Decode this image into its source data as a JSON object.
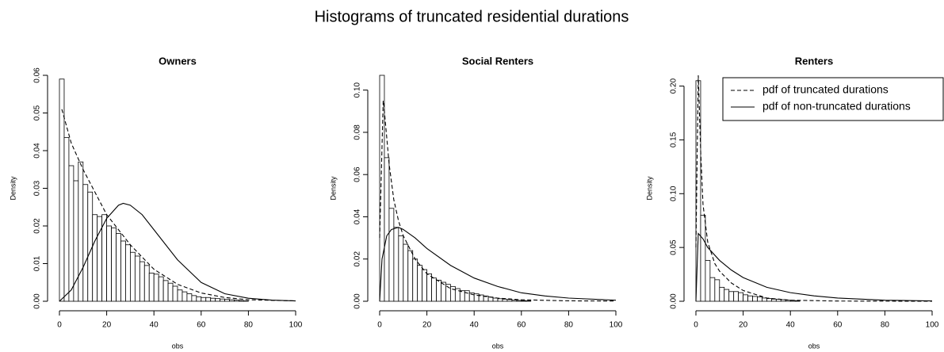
{
  "title": "Histograms of truncated residential durations",
  "chart_data": [
    {
      "type": "histogram",
      "title": "Owners",
      "xlabel": "obs",
      "ylabel": "Density",
      "bins": [
        0,
        2,
        4,
        6,
        8,
        10,
        12,
        14,
        16,
        18,
        20,
        22,
        24,
        26,
        28,
        30,
        32,
        34,
        36,
        38,
        40,
        42,
        44,
        46,
        48,
        50,
        52,
        54,
        56,
        58,
        60,
        62,
        64,
        66,
        68,
        70,
        72,
        74,
        76,
        78,
        80
      ],
      "values": [
        0.059,
        0.0435,
        0.036,
        0.032,
        0.037,
        0.031,
        0.029,
        0.023,
        0.0225,
        0.023,
        0.02,
        0.0195,
        0.018,
        0.016,
        0.015,
        0.013,
        0.012,
        0.0105,
        0.0095,
        0.0075,
        0.0072,
        0.0065,
        0.0055,
        0.0048,
        0.004,
        0.003,
        0.0025,
        0.002,
        0.0015,
        0.0012,
        0.001,
        0.001,
        0.0008,
        0.0007,
        0.0006,
        0.0005,
        0.0004,
        0.0003,
        0.0002,
        0.0001
      ],
      "series": [
        {
          "dashed": true,
          "color": "#000000",
          "x": [
            1,
            5,
            10,
            20,
            30,
            40,
            50,
            60,
            70,
            80,
            100
          ],
          "values": [
            0.051,
            0.042,
            0.035,
            0.023,
            0.015,
            0.0085,
            0.0045,
            0.0022,
            0.001,
            0.0004,
            0.0001
          ]
        },
        {
          "dashed": false,
          "color": "#000000",
          "x": [
            0,
            5,
            10,
            15,
            20,
            25,
            27,
            30,
            35,
            40,
            50,
            60,
            70,
            80,
            90,
            100
          ],
          "values": [
            0,
            0.003,
            0.009,
            0.016,
            0.022,
            0.0255,
            0.026,
            0.0255,
            0.023,
            0.019,
            0.011,
            0.005,
            0.002,
            0.0008,
            0.0003,
            0.0001
          ]
        }
      ],
      "xlim": [
        0,
        100
      ],
      "xticks": [
        0,
        20,
        40,
        60,
        80,
        100
      ],
      "ylim": [
        0,
        0.06
      ],
      "yticks": [
        {
          "value": 0,
          "label": "0.00"
        },
        {
          "value": 0.01,
          "label": "0.01"
        },
        {
          "value": 0.02,
          "label": "0.02"
        },
        {
          "value": 0.03,
          "label": "0.03"
        },
        {
          "value": 0.04,
          "label": "0.04"
        },
        {
          "value": 0.05,
          "label": "0.05"
        },
        {
          "value": 0.06,
          "label": "0.06"
        }
      ]
    },
    {
      "type": "histogram",
      "title": "Social Renters",
      "xlabel": "obs",
      "ylabel": "Density",
      "bins": [
        0,
        2,
        4,
        6,
        8,
        10,
        12,
        14,
        16,
        18,
        20,
        22,
        24,
        26,
        28,
        30,
        32,
        34,
        36,
        38,
        40,
        42,
        44,
        46,
        48,
        50,
        52,
        54,
        56,
        58,
        60,
        62,
        64
      ],
      "values": [
        0.107,
        0.068,
        0.044,
        0.035,
        0.031,
        0.027,
        0.024,
        0.02,
        0.017,
        0.015,
        0.013,
        0.011,
        0.01,
        0.009,
        0.008,
        0.007,
        0.006,
        0.005,
        0.005,
        0.004,
        0.0035,
        0.003,
        0.0025,
        0.002,
        0.0015,
        0.0012,
        0.001,
        0.0008,
        0.0006,
        0.0004,
        0.0003,
        0.0002
      ],
      "series": [
        {
          "dashed": true,
          "color": "#000000",
          "x": [
            0,
            1.5,
            2,
            4,
            6,
            8,
            10,
            15,
            20,
            30,
            40,
            50,
            60,
            80,
            100
          ],
          "values": [
            0.03,
            0.095,
            0.09,
            0.065,
            0.048,
            0.038,
            0.031,
            0.02,
            0.013,
            0.006,
            0.003,
            0.0015,
            0.0007,
            0.0002,
            0.0001
          ]
        },
        {
          "dashed": false,
          "color": "#000000",
          "x": [
            0,
            1,
            3,
            5,
            8,
            10,
            15,
            20,
            30,
            40,
            50,
            60,
            70,
            80,
            100
          ],
          "values": [
            0,
            0.02,
            0.031,
            0.034,
            0.035,
            0.034,
            0.03,
            0.025,
            0.017,
            0.011,
            0.007,
            0.004,
            0.0025,
            0.0015,
            0.0005
          ]
        }
      ],
      "xlim": [
        0,
        100
      ],
      "xticks": [
        0,
        20,
        40,
        60,
        80,
        100
      ],
      "ylim": [
        0,
        0.107
      ],
      "yticks": [
        {
          "value": 0,
          "label": "0.00"
        },
        {
          "value": 0.02,
          "label": "0.02"
        },
        {
          "value": 0.04,
          "label": "0.04"
        },
        {
          "value": 0.06,
          "label": "0.06"
        },
        {
          "value": 0.08,
          "label": "0.08"
        },
        {
          "value": 0.1,
          "label": "0.10"
        }
      ]
    },
    {
      "type": "histogram",
      "title": "Renters",
      "xlabel": "obs",
      "ylabel": "Density",
      "bins": [
        0,
        2,
        4,
        6,
        8,
        10,
        12,
        14,
        16,
        18,
        20,
        22,
        24,
        26,
        28,
        30,
        32,
        34,
        36,
        38,
        40,
        42,
        44
      ],
      "values": [
        0.205,
        0.08,
        0.038,
        0.022,
        0.02,
        0.013,
        0.011,
        0.009,
        0.009,
        0.008,
        0.006,
        0.005,
        0.0045,
        0.004,
        0.003,
        0.0025,
        0.002,
        0.0018,
        0.0015,
        0.001,
        0.0008,
        0.0005
      ],
      "series": [
        {
          "name": "pdf of truncated durations",
          "dashed": true,
          "color": "#000000",
          "x": [
            0,
            1,
            2,
            3,
            5,
            8,
            10,
            15,
            20,
            30,
            40,
            60,
            100
          ],
          "values": [
            0.05,
            0.21,
            0.14,
            0.09,
            0.055,
            0.035,
            0.028,
            0.017,
            0.01,
            0.003,
            0.001,
            0.0002,
            0
          ]
        },
        {
          "name": "pdf of non-truncated durations",
          "dashed": false,
          "color": "#000000",
          "x": [
            0,
            1,
            3,
            5,
            10,
            15,
            20,
            30,
            40,
            50,
            60,
            80,
            100
          ],
          "values": [
            0,
            0.063,
            0.058,
            0.05,
            0.038,
            0.029,
            0.022,
            0.013,
            0.008,
            0.005,
            0.003,
            0.001,
            0.0003
          ]
        }
      ],
      "legend": "topright",
      "xlim": [
        0,
        100
      ],
      "xticks": [
        0,
        20,
        40,
        60,
        80,
        100
      ],
      "ylim": [
        0,
        0.21
      ],
      "yticks": [
        {
          "value": 0,
          "label": "0.00"
        },
        {
          "value": 0.05,
          "label": "0.05"
        },
        {
          "value": 0.1,
          "label": "0.10"
        },
        {
          "value": 0.15,
          "label": "0.15"
        },
        {
          "value": 0.2,
          "label": "0.20"
        }
      ]
    }
  ]
}
